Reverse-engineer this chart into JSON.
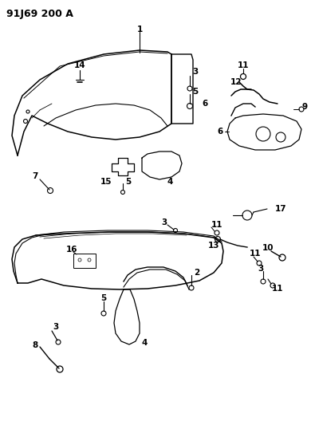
{
  "title": "91J69 200 A",
  "bg_color": "#ffffff",
  "line_color": "#000000",
  "title_fontsize": 10,
  "label_fontsize": 7.5,
  "fig_width": 3.9,
  "fig_height": 5.33,
  "dpi": 100
}
